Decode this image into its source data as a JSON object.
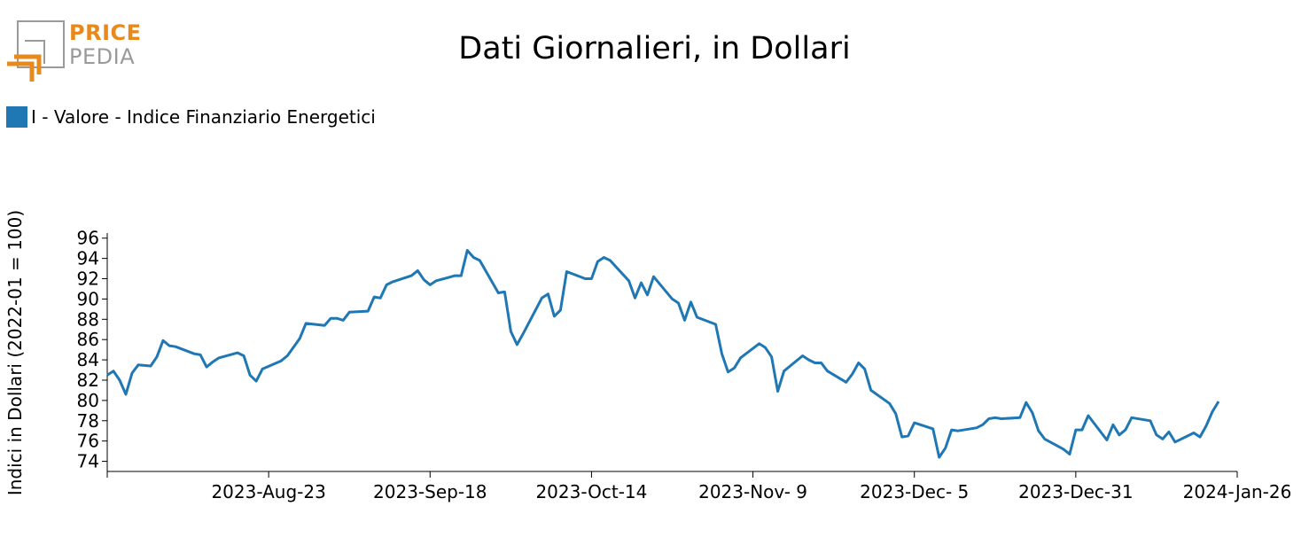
{
  "logo": {
    "line1": "PRICE",
    "line2": "PEDIA"
  },
  "colors": {
    "series": "#1f77b4",
    "logo_orange": "#e8891d",
    "logo_gray": "#9a9a9a"
  },
  "chart_data": {
    "type": "line",
    "title": "Dati Giornalieri, in Dollari",
    "ylabel": "Indici in Dollari (2022-01 = 100)",
    "xlabel": "",
    "ylim": [
      73,
      96.5
    ],
    "xlim": [
      "2023-07-28",
      "2024-01-26"
    ],
    "yticks": [
      74,
      76,
      78,
      80,
      82,
      84,
      86,
      88,
      90,
      92,
      94,
      96
    ],
    "xticks": [
      {
        "date": "2023-07-28",
        "label": ""
      },
      {
        "date": "2023-08-23",
        "label": "2023-Aug-23"
      },
      {
        "date": "2023-09-18",
        "label": "2023-Sep-18"
      },
      {
        "date": "2023-10-14",
        "label": "2023-Oct-14"
      },
      {
        "date": "2023-11-09",
        "label": "2023-Nov- 9"
      },
      {
        "date": "2023-12-05",
        "label": "2023-Dec- 5"
      },
      {
        "date": "2023-12-31",
        "label": "2023-Dec-31"
      },
      {
        "date": "2024-01-26",
        "label": "2024-Jan-26"
      }
    ],
    "legend_position": "top-left",
    "grid": false,
    "series": [
      {
        "name": "I - Valore - Indice Finanziario Energetici",
        "color": "#1f77b4",
        "points": [
          [
            "2023-07-28",
            82.5
          ],
          [
            "2023-07-29",
            82.9
          ],
          [
            "2023-07-30",
            82.0
          ],
          [
            "2023-07-31",
            80.6
          ],
          [
            "2023-08-01",
            82.7
          ],
          [
            "2023-08-02",
            83.5
          ],
          [
            "2023-08-04",
            83.4
          ],
          [
            "2023-08-05",
            84.3
          ],
          [
            "2023-08-06",
            85.9
          ],
          [
            "2023-08-07",
            85.4
          ],
          [
            "2023-08-08",
            85.3
          ],
          [
            "2023-08-11",
            84.6
          ],
          [
            "2023-08-12",
            84.5
          ],
          [
            "2023-08-13",
            83.3
          ],
          [
            "2023-08-14",
            83.8
          ],
          [
            "2023-08-15",
            84.2
          ],
          [
            "2023-08-18",
            84.7
          ],
          [
            "2023-08-19",
            84.4
          ],
          [
            "2023-08-20",
            82.5
          ],
          [
            "2023-08-21",
            81.9
          ],
          [
            "2023-08-22",
            83.1
          ],
          [
            "2023-08-25",
            83.9
          ],
          [
            "2023-08-26",
            84.4
          ],
          [
            "2023-08-28",
            86.1
          ],
          [
            "2023-08-29",
            87.6
          ],
          [
            "2023-09-01",
            87.4
          ],
          [
            "2023-09-02",
            88.1
          ],
          [
            "2023-09-03",
            88.1
          ],
          [
            "2023-09-04",
            87.9
          ],
          [
            "2023-09-05",
            88.7
          ],
          [
            "2023-09-08",
            88.8
          ],
          [
            "2023-09-09",
            90.2
          ],
          [
            "2023-09-10",
            90.1
          ],
          [
            "2023-09-11",
            91.4
          ],
          [
            "2023-09-12",
            91.7
          ],
          [
            "2023-09-15",
            92.3
          ],
          [
            "2023-09-16",
            92.8
          ],
          [
            "2023-09-17",
            91.9
          ],
          [
            "2023-09-18",
            91.4
          ],
          [
            "2023-09-19",
            91.8
          ],
          [
            "2023-09-22",
            92.3
          ],
          [
            "2023-09-23",
            92.3
          ],
          [
            "2023-09-24",
            94.8
          ],
          [
            "2023-09-25",
            94.1
          ],
          [
            "2023-09-26",
            93.8
          ],
          [
            "2023-09-29",
            90.6
          ],
          [
            "2023-09-30",
            90.7
          ],
          [
            "2023-10-01",
            86.8
          ],
          [
            "2023-10-02",
            85.5
          ],
          [
            "2023-10-03",
            86.6
          ],
          [
            "2023-10-06",
            90.1
          ],
          [
            "2023-10-07",
            90.5
          ],
          [
            "2023-10-08",
            88.3
          ],
          [
            "2023-10-09",
            88.9
          ],
          [
            "2023-10-10",
            92.7
          ],
          [
            "2023-10-13",
            92.0
          ],
          [
            "2023-10-14",
            92.0
          ],
          [
            "2023-10-15",
            93.7
          ],
          [
            "2023-10-16",
            94.1
          ],
          [
            "2023-10-17",
            93.8
          ],
          [
            "2023-10-20",
            91.8
          ],
          [
            "2023-10-21",
            90.1
          ],
          [
            "2023-10-22",
            91.6
          ],
          [
            "2023-10-23",
            90.4
          ],
          [
            "2023-10-24",
            92.2
          ],
          [
            "2023-10-27",
            90.0
          ],
          [
            "2023-10-28",
            89.6
          ],
          [
            "2023-10-29",
            87.9
          ],
          [
            "2023-10-30",
            89.7
          ],
          [
            "2023-10-31",
            88.2
          ],
          [
            "2023-11-03",
            87.5
          ],
          [
            "2023-11-04",
            84.6
          ],
          [
            "2023-11-05",
            82.8
          ],
          [
            "2023-11-06",
            83.2
          ],
          [
            "2023-11-07",
            84.2
          ],
          [
            "2023-11-10",
            85.6
          ],
          [
            "2023-11-11",
            85.2
          ],
          [
            "2023-11-12",
            84.3
          ],
          [
            "2023-11-13",
            80.9
          ],
          [
            "2023-11-14",
            82.9
          ],
          [
            "2023-11-17",
            84.4
          ],
          [
            "2023-11-18",
            84.0
          ],
          [
            "2023-11-19",
            83.7
          ],
          [
            "2023-11-20",
            83.7
          ],
          [
            "2023-11-21",
            82.9
          ],
          [
            "2023-11-24",
            81.8
          ],
          [
            "2023-11-25",
            82.6
          ],
          [
            "2023-11-26",
            83.7
          ],
          [
            "2023-11-27",
            83.1
          ],
          [
            "2023-11-28",
            81.0
          ],
          [
            "2023-12-01",
            79.7
          ],
          [
            "2023-12-02",
            78.7
          ],
          [
            "2023-12-03",
            76.4
          ],
          [
            "2023-12-04",
            76.5
          ],
          [
            "2023-12-05",
            77.8
          ],
          [
            "2023-12-08",
            77.2
          ],
          [
            "2023-12-09",
            74.4
          ],
          [
            "2023-12-10",
            75.3
          ],
          [
            "2023-12-11",
            77.1
          ],
          [
            "2023-12-12",
            77.0
          ],
          [
            "2023-12-15",
            77.3
          ],
          [
            "2023-12-16",
            77.6
          ],
          [
            "2023-12-17",
            78.2
          ],
          [
            "2023-12-18",
            78.3
          ],
          [
            "2023-12-19",
            78.2
          ],
          [
            "2023-12-22",
            78.3
          ],
          [
            "2023-12-23",
            79.8
          ],
          [
            "2023-12-24",
            78.8
          ],
          [
            "2023-12-25",
            77.0
          ],
          [
            "2023-12-26",
            76.2
          ],
          [
            "2023-12-29",
            75.2
          ],
          [
            "2023-12-30",
            74.7
          ],
          [
            "2023-12-31",
            77.1
          ],
          [
            "2024-01-01",
            77.1
          ],
          [
            "2024-01-02",
            78.5
          ],
          [
            "2024-01-05",
            76.1
          ],
          [
            "2024-01-06",
            77.6
          ],
          [
            "2024-01-07",
            76.6
          ],
          [
            "2024-01-08",
            77.1
          ],
          [
            "2024-01-09",
            78.3
          ],
          [
            "2024-01-12",
            78.0
          ],
          [
            "2024-01-13",
            76.6
          ],
          [
            "2024-01-14",
            76.2
          ],
          [
            "2024-01-15",
            76.9
          ],
          [
            "2024-01-16",
            75.9
          ],
          [
            "2024-01-19",
            76.8
          ],
          [
            "2024-01-20",
            76.4
          ],
          [
            "2024-01-21",
            77.5
          ],
          [
            "2024-01-22",
            78.9
          ],
          [
            "2024-01-23",
            79.9
          ]
        ]
      }
    ]
  }
}
